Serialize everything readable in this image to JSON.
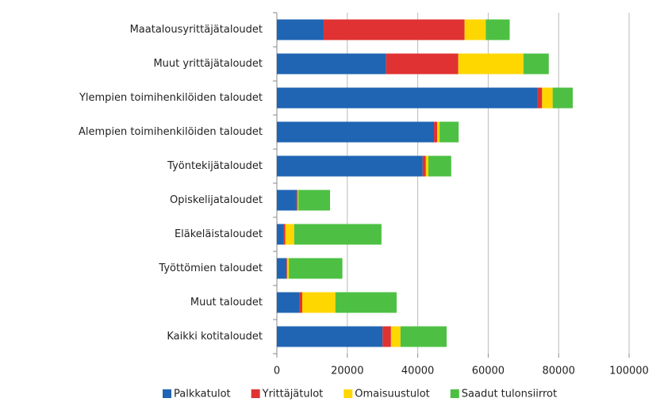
{
  "chart_data": {
    "type": "stacked_barh",
    "categories": [
      "Maatalousyrittäjätaloudet",
      "Muut yrittäjätaloudet",
      "Ylempien toimihenkilöiden taloudet",
      "Alempien toimihenkilöiden taloudet",
      "Työntekijätaloudet",
      "Opiskelijataloudet",
      "Eläkeläistaloudet",
      "Työttömien taloudet",
      "Muut taloudet",
      "Kaikki kotitaloudet"
    ],
    "series": [
      {
        "name": "Palkkatulot",
        "color": "#1f65b3",
        "values": [
          13300,
          31000,
          74000,
          44600,
          41400,
          5600,
          1800,
          2700,
          6500,
          30000
        ]
      },
      {
        "name": "Yrittäjätulot",
        "color": "#e03232",
        "values": [
          40000,
          20500,
          1300,
          900,
          900,
          300,
          600,
          200,
          700,
          2400
        ]
      },
      {
        "name": "Omaisuustulot",
        "color": "#ffd700",
        "values": [
          6000,
          18500,
          3000,
          700,
          700,
          200,
          2500,
          500,
          9400,
          2700
        ]
      },
      {
        "name": "Saadut tulonsiirrot",
        "color": "#4dc044",
        "values": [
          6800,
          7200,
          5700,
          5400,
          6500,
          9000,
          24800,
          15200,
          17400,
          13100
        ]
      }
    ],
    "xlim": [
      0,
      100000
    ],
    "xticks": [
      0,
      20000,
      40000,
      60000,
      80000,
      100000
    ],
    "grid": true,
    "legend": "bottom"
  }
}
